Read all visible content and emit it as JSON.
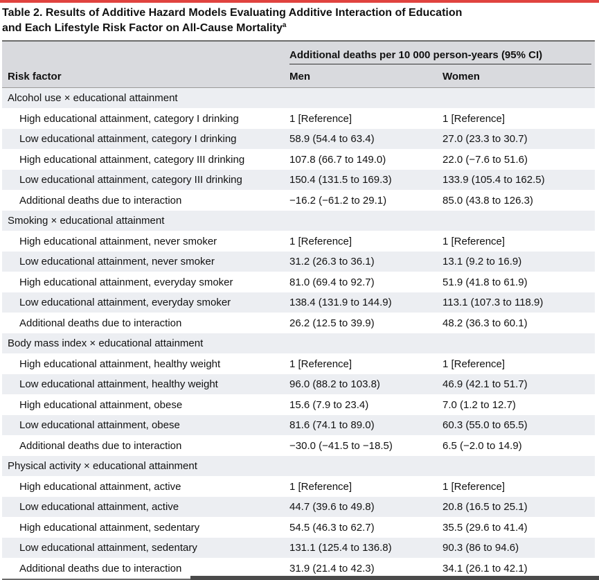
{
  "title": {
    "line1": "Table 2. Results of Additive Hazard Models Evaluating Additive Interaction of Education",
    "line2": "and Each Lifestyle Risk Factor on All-Cause Mortality",
    "footnote_mark": "a"
  },
  "header": {
    "span_label": "Additional deaths per 10 000 person-years (95% CI)",
    "risk_factor": "Risk factor",
    "men": "Men",
    "women": "Women"
  },
  "rows": [
    {
      "type": "group",
      "label": "Alcohol use × educational attainment",
      "men": "",
      "women": ""
    },
    {
      "type": "sub",
      "label": "High educational attainment, category I drinking",
      "men": "1 [Reference]",
      "women": "1 [Reference]"
    },
    {
      "type": "sub",
      "label": "Low educational attainment, category I drinking",
      "men": "58.9 (54.4 to 63.4)",
      "women": "27.0 (23.3 to 30.7)"
    },
    {
      "type": "sub",
      "label": "High educational attainment, category III drinking",
      "men": "107.8 (66.7 to 149.0)",
      "women": "22.0 (−7.6 to 51.6)"
    },
    {
      "type": "sub",
      "label": "Low educational attainment, category III drinking",
      "men": "150.4 (131.5 to 169.3)",
      "women": "133.9 (105.4 to 162.5)"
    },
    {
      "type": "sub",
      "label": "Additional deaths due to interaction",
      "men": "−16.2 (−61.2 to 29.1)",
      "women": "85.0 (43.8 to 126.3)"
    },
    {
      "type": "group",
      "label": "Smoking × educational attainment",
      "men": "",
      "women": ""
    },
    {
      "type": "sub",
      "label": "High educational attainment, never smoker",
      "men": "1 [Reference]",
      "women": "1 [Reference]"
    },
    {
      "type": "sub",
      "label": "Low educational attainment, never smoker",
      "men": "31.2 (26.3 to 36.1)",
      "women": "13.1 (9.2 to 16.9)"
    },
    {
      "type": "sub",
      "label": "High educational attainment, everyday smoker",
      "men": "81.0 (69.4 to 92.7)",
      "women": "51.9 (41.8 to 61.9)"
    },
    {
      "type": "sub",
      "label": "Low educational attainment, everyday smoker",
      "men": "138.4 (131.9 to 144.9)",
      "women": "113.1 (107.3 to 118.9)"
    },
    {
      "type": "sub",
      "label": "Additional deaths due to interaction",
      "men": "26.2 (12.5 to 39.9)",
      "women": "48.2 (36.3 to 60.1)"
    },
    {
      "type": "group",
      "label": "Body mass index × educational attainment",
      "men": "",
      "women": ""
    },
    {
      "type": "sub",
      "label": "High educational attainment, healthy weight",
      "men": "1 [Reference]",
      "women": "1 [Reference]"
    },
    {
      "type": "sub",
      "label": "Low educational attainment, healthy weight",
      "men": "96.0 (88.2 to 103.8)",
      "women": "46.9 (42.1 to 51.7)"
    },
    {
      "type": "sub",
      "label": "High educational attainment, obese",
      "men": "15.6 (7.9 to 23.4)",
      "women": "7.0 (1.2 to 12.7)"
    },
    {
      "type": "sub",
      "label": "Low educational attainment, obese",
      "men": "81.6 (74.1 to 89.0)",
      "women": "60.3 (55.0 to 65.5)"
    },
    {
      "type": "sub",
      "label": "Additional deaths due to interaction",
      "men": "−30.0 (−41.5 to −18.5)",
      "women": "6.5 (−2.0 to 14.9)"
    },
    {
      "type": "group",
      "label": "Physical activity × educational attainment",
      "men": "",
      "women": ""
    },
    {
      "type": "sub",
      "label": "High educational attainment, active",
      "men": "1 [Reference]",
      "women": "1 [Reference]"
    },
    {
      "type": "sub",
      "label": "Low educational attainment, active",
      "men": "44.7 (39.6 to 49.8)",
      "women": "20.8 (16.5 to 25.1)"
    },
    {
      "type": "sub",
      "label": "High educational attainment, sedentary",
      "men": "54.5 (46.3 to 62.7)",
      "women": "35.5 (29.6 to 41.4)"
    },
    {
      "type": "sub",
      "label": "Low educational attainment, sedentary",
      "men": "131.1 (125.4 to 136.8)",
      "women": "90.3 (86 to 94.6)"
    },
    {
      "type": "sub",
      "label": "Additional deaths due to interaction",
      "men": "31.9 (21.4 to 42.3)",
      "women": "34.1 (26.1 to 42.1)"
    }
  ],
  "colors": {
    "accent": "#e0433f",
    "header_bg": "#d9dade",
    "stripe": "#eceef2"
  }
}
